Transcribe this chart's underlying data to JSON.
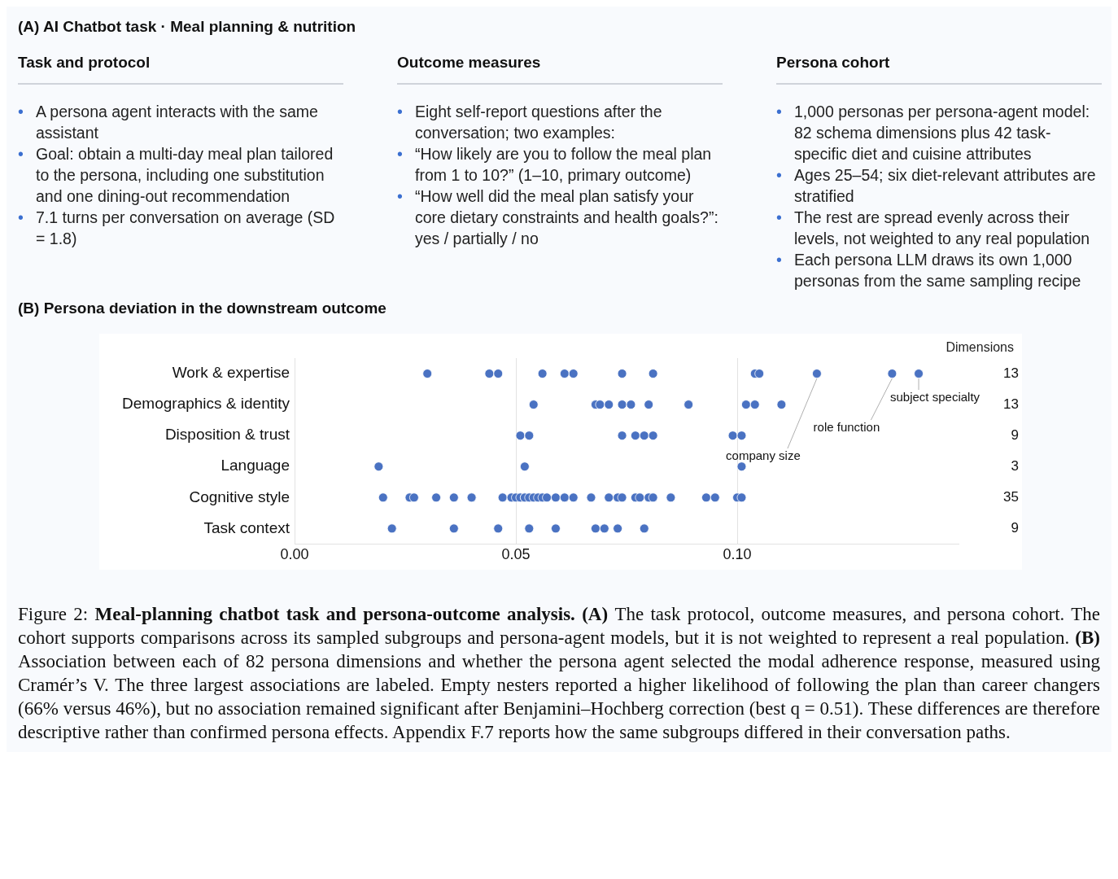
{
  "chart_data": [
    {
      "type": "other",
      "title": "(A)  AI Chatbot task · Meal planning & nutrition"
    },
    {
      "type": "other",
      "title": "Task and protocol",
      "annotations": [
        "• A persona agent interacts with the same assistant",
        "• Goal: obtain a multi-day meal plan tailored to the persona, including one substitution and one dining-out recommendation",
        "• 7.1 turns per conversation on average (SD = 1.8)"
      ]
    },
    {
      "type": "other",
      "title": "Outcome measures",
      "annotations": [
        "• Eight self-report questions after the conversation; two examples:",
        "• “How likely are you to follow the meal plan from 1 to 10?” (1–10, primary outcome)",
        "• “How well did the meal plan satisfy your core dietary constraints and health goals?”: yes / partially / no"
      ]
    },
    {
      "type": "other",
      "title": "Persona cohort",
      "annotations": [
        "• 1,000 personas per persona-agent model: 82 schema dimensions plus 42 task-specific diet and cuisine attributes",
        "• Ages 25–54; six diet-relevant attributes are stratified",
        "• The rest are spread evenly across their levels, not weighted to any real population",
        "• Each persona LLM draws its own 1,000 personas from the same sampling recipe"
      ]
    },
    {
      "type": "scatter",
      "title": "(B)  Persona deviation in the downstream outcome",
      "orientation": "horizontal",
      "categories": [
        "Work & expertise",
        "Demographics & identity",
        "Disposition & trust",
        "Language",
        "Cognitive style",
        "Task context"
      ],
      "y2_categories": [
        "13",
        "13",
        "9",
        "3",
        "35",
        "9"
      ],
      "y2label": "Dimensions",
      "xticks": [
        {
          "value": 0,
          "label": "0.00"
        },
        0.05,
        {
          "value": 0.1,
          "label": "0.10"
        }
      ],
      "xlim": [
        0,
        0.15
      ],
      "grid": "x",
      "marker": "circle",
      "series": [
        {
          "color": "#4a72c2",
          "x": [
            "Work & expertise",
            "Work & expertise",
            "Work & expertise",
            "Work & expertise",
            "Work & expertise",
            "Work & expertise",
            "Work & expertise",
            "Work & expertise",
            "Work & expertise",
            "Work & expertise",
            "Work & expertise",
            "Work & expertise",
            "Work & expertise",
            "Demographics & identity",
            "Demographics & identity",
            "Demographics & identity",
            "Demographics & identity",
            "Demographics & identity",
            "Demographics & identity",
            "Demographics & identity",
            "Demographics & identity",
            "Demographics & identity",
            "Demographics & identity",
            "Demographics & identity",
            "Demographics & identity",
            "Demographics & identity",
            "Disposition & trust",
            "Disposition & trust",
            "Disposition & trust",
            "Disposition & trust",
            "Disposition & trust",
            "Disposition & trust",
            "Disposition & trust",
            "Disposition & trust",
            "Disposition & trust",
            "Language",
            "Language",
            "Language",
            "Cognitive style",
            "Cognitive style",
            "Cognitive style",
            "Cognitive style",
            "Cognitive style",
            "Cognitive style",
            "Cognitive style",
            "Cognitive style",
            "Cognitive style",
            "Cognitive style",
            "Cognitive style",
            "Cognitive style",
            "Cognitive style",
            "Cognitive style",
            "Cognitive style",
            "Cognitive style",
            "Cognitive style",
            "Cognitive style",
            "Cognitive style",
            "Cognitive style",
            "Cognitive style",
            "Cognitive style",
            "Cognitive style",
            "Cognitive style",
            "Cognitive style",
            "Cognitive style",
            "Cognitive style",
            "Cognitive style",
            "Cognitive style",
            "Cognitive style",
            "Cognitive style",
            "Cognitive style",
            "Cognitive style",
            "Cognitive style",
            "Cognitive style",
            "Task context",
            "Task context",
            "Task context",
            "Task context",
            "Task context",
            "Task context",
            "Task context",
            "Task context",
            "Task context"
          ],
          "values": [
            0.03,
            0.044,
            0.046,
            0.056,
            0.061,
            0.063,
            0.074,
            0.081,
            0.104,
            0.105,
            0.118,
            0.135,
            0.141,
            0.054,
            0.068,
            0.068,
            0.069,
            0.071,
            0.074,
            0.076,
            0.08,
            0.089,
            0.089,
            0.102,
            0.104,
            0.11,
            0.051,
            0.053,
            0.053,
            0.074,
            0.077,
            0.079,
            0.081,
            0.099,
            0.101,
            0.019,
            0.052,
            0.101,
            0.02,
            0.026,
            0.027,
            0.032,
            0.036,
            0.04,
            0.04,
            0.047,
            0.049,
            0.05,
            0.051,
            0.052,
            0.052,
            0.053,
            0.054,
            0.055,
            0.056,
            0.057,
            0.059,
            0.061,
            0.061,
            0.063,
            0.067,
            0.071,
            0.073,
            0.074,
            0.077,
            0.078,
            0.08,
            0.081,
            0.085,
            0.093,
            0.095,
            0.1,
            0.101,
            0.022,
            0.036,
            0.046,
            0.053,
            0.059,
            0.068,
            0.07,
            0.073,
            0.079
          ]
        }
      ],
      "annotations": [
        {
          "text": "company size",
          "x": 0.118,
          "y": "Work & expertise"
        },
        {
          "text": "role function",
          "x": 0.135,
          "y": "Work & expertise"
        },
        {
          "text": "subject specialty",
          "x": 0.141,
          "y": "Work & expertise"
        },
        "Figure 2:",
        "Meal-planning chatbot task and persona-outcome analysis. (A)",
        "The task protocol, outcome measures, and persona cohort. The cohort supports comparisons across its sampled subgroups and persona-agent models, but it is not weighted to represent a real population.",
        "(B)",
        "Association between each of 82 persona dimensions and whether the persona agent selected the modal adherence response, measured using Cramér’s V. The three largest associations are labeled. Empty nesters reported a higher likelihood of following the plan than career changers (66% versus 46%), but no association remained significant after Benjamini–Hochberg correction (best q = 0.51). These differences are therefore descriptive rather than confirmed persona effects. Appendix F.7 reports how the same subgroups differed in their conversation paths."
      ]
    }
  ]
}
